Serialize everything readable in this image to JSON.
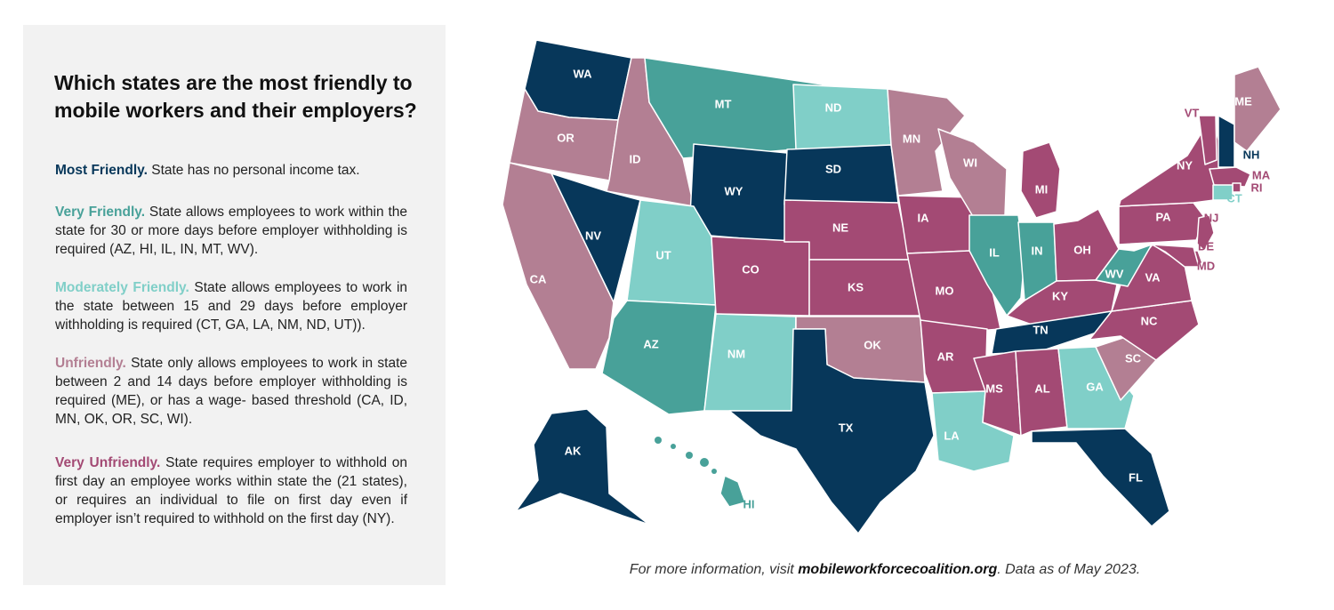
{
  "title": "Which states are the most friendly to mobile workers and their employers?",
  "colors": {
    "most_friendly": "#07375a",
    "very_friendly": "#48a199",
    "moderately_friendly": "#80cfc8",
    "unfriendly": "#b37f93",
    "very_unfriendly": "#a34a74",
    "panel_background": "#f2f2f2"
  },
  "legend": {
    "most": {
      "term": "Most Friendly.",
      "text": "State has no personal income tax."
    },
    "very": {
      "term": "Very Friendly.",
      "text": "State allows employees to work within the state for 30 or more days before employer withholding is required (AZ, HI, IL, IN, MT, WV)."
    },
    "moderate": {
      "term": "Moderately Friendly.",
      "text": "State allows employees to work in the state between 15 and 29 days before employer withholding is required (CT, GA, LA, NM, ND, UT))."
    },
    "unfriendly": {
      "term": "Unfriendly.",
      "text": "State only allows employees to work in state between 2 and 14 days before employer withholding is required (ME), or has a wage- based threshold (CA, ID, MN, OK, OR, SC, WI)."
    },
    "very_unfriendly": {
      "term": "Very Unfriendly.",
      "text": "State requires employer to withhold on first day an employee works within state the (21 states), or requires an individual to file on first day even if employer isn’t required to withhold on the first day (NY)."
    }
  },
  "states": [
    {
      "abbr": "WA",
      "category": "most_friendly"
    },
    {
      "abbr": "OR",
      "category": "unfriendly"
    },
    {
      "abbr": "CA",
      "category": "unfriendly"
    },
    {
      "abbr": "ID",
      "category": "unfriendly"
    },
    {
      "abbr": "NV",
      "category": "most_friendly"
    },
    {
      "abbr": "MT",
      "category": "very_friendly"
    },
    {
      "abbr": "WY",
      "category": "most_friendly"
    },
    {
      "abbr": "UT",
      "category": "moderately_friendly"
    },
    {
      "abbr": "AZ",
      "category": "very_friendly"
    },
    {
      "abbr": "CO",
      "category": "very_unfriendly"
    },
    {
      "abbr": "NM",
      "category": "moderately_friendly"
    },
    {
      "abbr": "ND",
      "category": "moderately_friendly"
    },
    {
      "abbr": "SD",
      "category": "most_friendly"
    },
    {
      "abbr": "NE",
      "category": "very_unfriendly"
    },
    {
      "abbr": "KS",
      "category": "very_unfriendly"
    },
    {
      "abbr": "OK",
      "category": "unfriendly"
    },
    {
      "abbr": "TX",
      "category": "most_friendly"
    },
    {
      "abbr": "MN",
      "category": "unfriendly"
    },
    {
      "abbr": "IA",
      "category": "very_unfriendly"
    },
    {
      "abbr": "MO",
      "category": "very_unfriendly"
    },
    {
      "abbr": "AR",
      "category": "very_unfriendly"
    },
    {
      "abbr": "LA",
      "category": "moderately_friendly"
    },
    {
      "abbr": "WI",
      "category": "unfriendly"
    },
    {
      "abbr": "IL",
      "category": "very_friendly"
    },
    {
      "abbr": "MI",
      "category": "very_unfriendly"
    },
    {
      "abbr": "IN",
      "category": "very_friendly"
    },
    {
      "abbr": "OH",
      "category": "very_unfriendly"
    },
    {
      "abbr": "KY",
      "category": "very_unfriendly"
    },
    {
      "abbr": "TN",
      "category": "most_friendly"
    },
    {
      "abbr": "MS",
      "category": "very_unfriendly"
    },
    {
      "abbr": "AL",
      "category": "very_unfriendly"
    },
    {
      "abbr": "GA",
      "category": "moderately_friendly"
    },
    {
      "abbr": "FL",
      "category": "most_friendly"
    },
    {
      "abbr": "SC",
      "category": "unfriendly"
    },
    {
      "abbr": "NC",
      "category": "very_unfriendly"
    },
    {
      "abbr": "VA",
      "category": "very_unfriendly"
    },
    {
      "abbr": "WV",
      "category": "very_friendly"
    },
    {
      "abbr": "PA",
      "category": "very_unfriendly"
    },
    {
      "abbr": "NY",
      "category": "very_unfriendly"
    },
    {
      "abbr": "VT",
      "category": "very_unfriendly"
    },
    {
      "abbr": "NH",
      "category": "most_friendly"
    },
    {
      "abbr": "ME",
      "category": "unfriendly"
    },
    {
      "abbr": "MA",
      "category": "very_unfriendly"
    },
    {
      "abbr": "RI",
      "category": "very_unfriendly"
    },
    {
      "abbr": "CT",
      "category": "moderately_friendly"
    },
    {
      "abbr": "NJ",
      "category": "very_unfriendly"
    },
    {
      "abbr": "DE",
      "category": "very_unfriendly"
    },
    {
      "abbr": "MD",
      "category": "very_unfriendly"
    },
    {
      "abbr": "AK",
      "category": "most_friendly"
    },
    {
      "abbr": "HI",
      "category": "very_friendly"
    }
  ],
  "footer": {
    "prefix": "For more information, visit ",
    "site": "mobileworkforcecoalition.org",
    "suffix": ". Data as of May 2023."
  }
}
